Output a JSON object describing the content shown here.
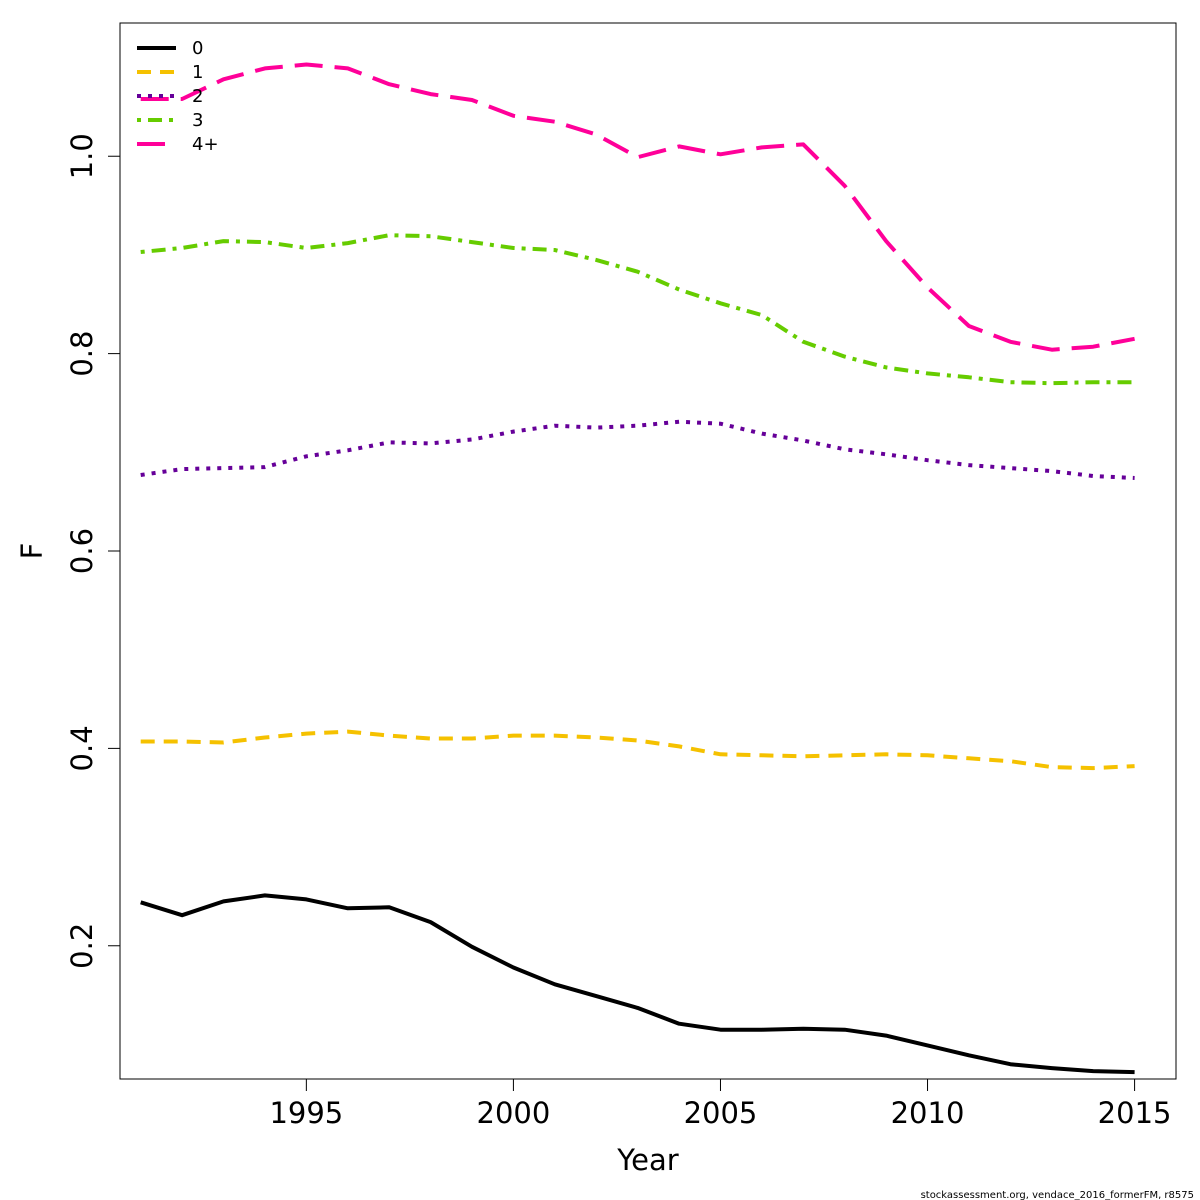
{
  "chart_data": {
    "type": "line",
    "xlabel": "Year",
    "ylabel": "F",
    "xlim": [
      1990.5,
      2016.0
    ],
    "ylim": [
      0.065,
      1.135
    ],
    "x_ticks": [
      1995,
      2000,
      2005,
      2010,
      2015
    ],
    "x_tick_labels": [
      "1995",
      "2000",
      "2005",
      "2010",
      "2015"
    ],
    "y_ticks": [
      0.2,
      0.4,
      0.6,
      0.8,
      1.0
    ],
    "y_tick_labels": [
      "0.2",
      "0.4",
      "0.6",
      "0.8",
      "1.0"
    ],
    "grid": false,
    "legend_position": "top-left",
    "x": [
      1991,
      1992,
      1993,
      1994,
      1995,
      1996,
      1997,
      1998,
      1999,
      2000,
      2001,
      2002,
      2003,
      2004,
      2005,
      2006,
      2007,
      2008,
      2009,
      2010,
      2011,
      2012,
      2013,
      2014,
      2015
    ],
    "series": [
      {
        "name": "0",
        "color": "#000000",
        "dash": "",
        "values": [
          0.244,
          0.231,
          0.245,
          0.251,
          0.247,
          0.238,
          0.239,
          0.224,
          0.199,
          0.178,
          0.161,
          0.149,
          0.137,
          0.121,
          0.115,
          0.115,
          0.116,
          0.115,
          0.109,
          0.099,
          0.089,
          0.08,
          0.076,
          0.073,
          0.072
        ]
      },
      {
        "name": "1",
        "color": "#f5c100",
        "dash": "14,9",
        "values": [
          0.407,
          0.407,
          0.406,
          0.411,
          0.415,
          0.417,
          0.413,
          0.41,
          0.41,
          0.413,
          0.413,
          0.411,
          0.408,
          0.402,
          0.394,
          0.393,
          0.392,
          0.393,
          0.394,
          0.393,
          0.39,
          0.387,
          0.381,
          0.38,
          0.382
        ]
      },
      {
        "name": "2",
        "color": "#660099",
        "dash": "4,7",
        "values": [
          0.677,
          0.683,
          0.684,
          0.685,
          0.696,
          0.702,
          0.71,
          0.709,
          0.713,
          0.721,
          0.727,
          0.725,
          0.727,
          0.731,
          0.729,
          0.719,
          0.712,
          0.703,
          0.698,
          0.692,
          0.687,
          0.684,
          0.681,
          0.676,
          0.674
        ]
      },
      {
        "name": "3",
        "color": "#66cc00",
        "dash": "4,7,14,7",
        "values": [
          0.903,
          0.907,
          0.914,
          0.913,
          0.907,
          0.912,
          0.92,
          0.919,
          0.913,
          0.907,
          0.905,
          0.895,
          0.883,
          0.865,
          0.851,
          0.839,
          0.812,
          0.797,
          0.786,
          0.78,
          0.776,
          0.771,
          0.77,
          0.771,
          0.771
        ]
      },
      {
        "name": "4+",
        "color": "#ff0099",
        "dash": "28,12",
        "values": [
          1.058,
          1.058,
          1.078,
          1.089,
          1.093,
          1.089,
          1.073,
          1.063,
          1.057,
          1.041,
          1.035,
          1.022,
          0.999,
          1.01,
          1.002,
          1.009,
          1.012,
          0.97,
          0.914,
          0.867,
          0.828,
          0.812,
          0.804,
          0.807,
          0.815
        ]
      }
    ]
  },
  "footer": {
    "text": "stockassessment.org, vendace_2016_formerFM, r8575"
  }
}
